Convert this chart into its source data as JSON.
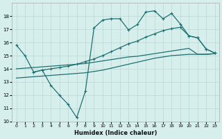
{
  "xlabel": "Humidex (Indice chaleur)",
  "bg_color": "#d6efed",
  "grid_color": "#b8d8d4",
  "line_color": "#1e7070",
  "xlim": [
    -0.5,
    23.5
  ],
  "ylim": [
    10,
    19
  ],
  "xticks": [
    0,
    1,
    2,
    3,
    4,
    5,
    6,
    7,
    8,
    9,
    10,
    11,
    12,
    13,
    14,
    15,
    16,
    17,
    18,
    19,
    20,
    21,
    22,
    23
  ],
  "yticks": [
    10,
    11,
    12,
    13,
    14,
    15,
    16,
    17,
    18
  ],
  "curve1_x": [
    0,
    1,
    2,
    3,
    4,
    5,
    6,
    7,
    8,
    9,
    10,
    11,
    12,
    13,
    14,
    15,
    16,
    17,
    18,
    19,
    20,
    21,
    22,
    23
  ],
  "curve1_y": [
    15.8,
    15.0,
    13.75,
    13.9,
    12.75,
    12.0,
    11.3,
    10.3,
    12.3,
    17.1,
    17.7,
    17.8,
    17.8,
    16.95,
    17.35,
    18.3,
    18.4,
    17.8,
    18.2,
    17.4,
    16.5,
    16.35,
    15.5,
    15.2
  ],
  "curve2_x": [
    2,
    3,
    4,
    5,
    6,
    7,
    8,
    9,
    10,
    11,
    12,
    13,
    14,
    15,
    16,
    17,
    18,
    19,
    20,
    21,
    22,
    23
  ],
  "curve2_y": [
    13.75,
    13.9,
    14.0,
    14.1,
    14.2,
    14.35,
    14.55,
    14.75,
    15.0,
    15.3,
    15.6,
    15.9,
    16.1,
    16.4,
    16.65,
    16.9,
    17.05,
    17.15,
    16.5,
    16.35,
    15.5,
    15.2
  ],
  "curve3_x": [
    0,
    1,
    2,
    3,
    4,
    5,
    6,
    7,
    8,
    9,
    10,
    11,
    12,
    13,
    14,
    15,
    16,
    17,
    18,
    19,
    20,
    21,
    22,
    23
  ],
  "curve3_y": [
    14.0,
    14.05,
    14.1,
    14.15,
    14.2,
    14.25,
    14.3,
    14.35,
    14.4,
    14.5,
    14.6,
    14.7,
    14.8,
    14.9,
    14.95,
    15.05,
    15.15,
    15.25,
    15.35,
    15.45,
    15.55,
    15.1,
    15.1,
    15.15
  ],
  "curve4_x": [
    0,
    1,
    2,
    3,
    4,
    5,
    6,
    7,
    8,
    9,
    10,
    11,
    12,
    13,
    14,
    15,
    16,
    17,
    18,
    19,
    20,
    21,
    22,
    23
  ],
  "curve4_y": [
    13.3,
    13.35,
    13.4,
    13.45,
    13.5,
    13.55,
    13.6,
    13.65,
    13.7,
    13.8,
    13.9,
    14.05,
    14.2,
    14.35,
    14.5,
    14.65,
    14.8,
    14.9,
    15.0,
    15.05,
    15.1,
    15.1,
    15.1,
    15.15
  ]
}
